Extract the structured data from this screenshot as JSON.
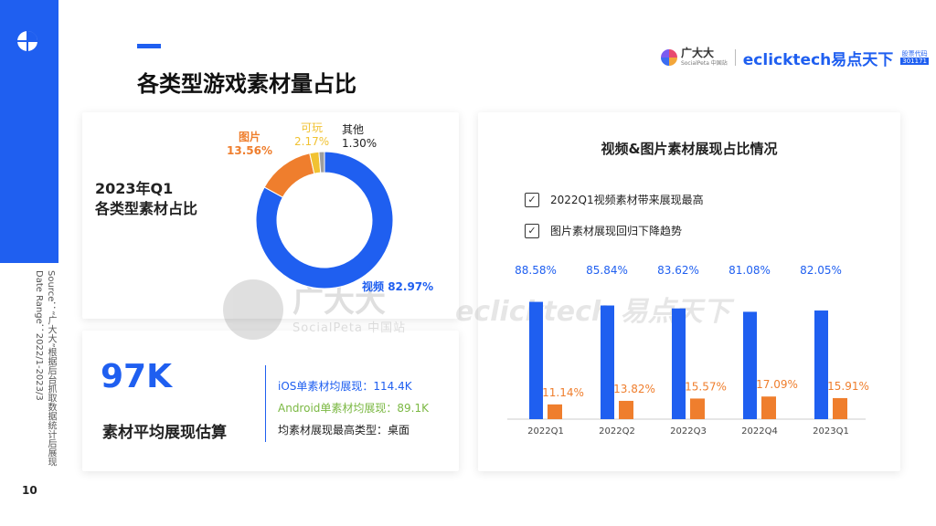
{
  "page": {
    "title": "各类型游戏素材量占比",
    "page_number": "10",
    "source_lines": [
      "Source：“广大大”根据后台抓取数据统计后展现",
      "Date Range：2022/1-2023/3"
    ]
  },
  "brand": {
    "logo1_name": "广大大",
    "logo1_sub": "SocialPeta 中国站",
    "logo2_name": "eclicktech易点天下",
    "stock_label": "股票代码",
    "stock_code": "301171"
  },
  "watermark": {
    "text1": "广大大",
    "text2": "SocialPeta 中国站",
    "text3": "eclicktech 易点天下"
  },
  "donut_card": {
    "label_line1": "2023年Q1",
    "label_line2": "各类型素材占比"
  },
  "kpi_card": {
    "value": "97K",
    "subtitle": "素材平均展现估算",
    "ios": "iOS单素材均展现：114.4K",
    "android": "Android单素材均展现：89.1K",
    "top_type": "均素材展现最高类型：桌面"
  },
  "bar_card": {
    "title": "视频&图片素材展现占比情况",
    "check1": "2022Q1视频素材带来展现最高",
    "check2": "图片素材展现回归下降趋势",
    "check_mark": "✓"
  },
  "colors": {
    "blue": "#1f5ff0",
    "orange": "#ef7e2d",
    "yellow": "#f1c232",
    "gray": "#9e9e9e",
    "green": "#7bb843"
  },
  "chart_data": [
    {
      "type": "pie",
      "subtype": "donut",
      "slices": [
        {
          "name": "视频",
          "value": 82.97,
          "label": "82.97%",
          "color": "#1f5ff0"
        },
        {
          "name": "图片",
          "value": 13.56,
          "label": "13.56%",
          "color": "#ef7e2d"
        },
        {
          "name": "可玩",
          "value": 2.17,
          "label": "2.17%",
          "color": "#f1c232"
        },
        {
          "name": "其他",
          "value": 1.3,
          "label": "1.30%",
          "color": "#9e9e9e"
        }
      ]
    },
    {
      "type": "bar",
      "categories": [
        "2022Q1",
        "2022Q2",
        "2022Q3",
        "2022Q4",
        "2023Q1"
      ],
      "series": [
        {
          "name": "视频",
          "values": [
            88.58,
            85.84,
            83.62,
            81.08,
            82.05
          ],
          "labels": [
            "88.58%",
            "85.84%",
            "83.62%",
            "81.08%",
            "82.05%"
          ],
          "color": "#1f5ff0"
        },
        {
          "name": "图片",
          "values": [
            11.14,
            13.82,
            15.57,
            17.09,
            15.91
          ],
          "labels": [
            "11.14%",
            "13.82%",
            "15.57%",
            "17.09%",
            "15.91%"
          ],
          "color": "#ef7e2d"
        }
      ],
      "ylim": [
        0,
        100
      ],
      "grid": false
    }
  ]
}
